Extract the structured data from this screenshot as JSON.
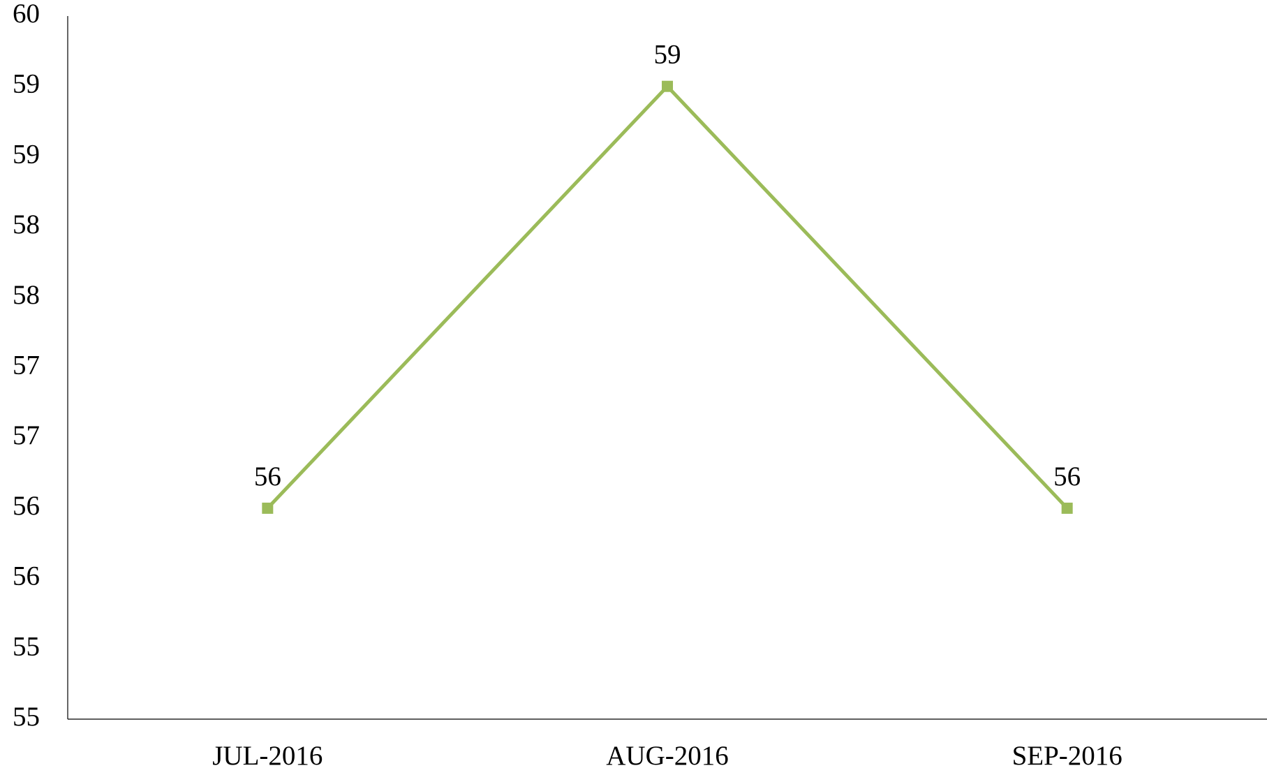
{
  "chart_data": {
    "type": "line",
    "categories": [
      "JUL-2016",
      "AUG-2016",
      "SEP-2016"
    ],
    "series": [
      {
        "name": null,
        "color": "#9bbb59",
        "values": [
          56.5,
          59.5,
          56.5
        ],
        "value_labels": [
          "56",
          "59",
          "56"
        ]
      }
    ],
    "ylim": [
      55,
      60
    ],
    "yticks": [
      55,
      {
        "value": 55.5,
        "label": "55"
      },
      56,
      {
        "value": 56.5,
        "label": "56"
      },
      57,
      {
        "value": 57.5,
        "label": "57"
      },
      58,
      {
        "value": 58.5,
        "label": "58"
      },
      59,
      {
        "value": 59.5,
        "label": "59"
      },
      60
    ],
    "grid": false
  }
}
